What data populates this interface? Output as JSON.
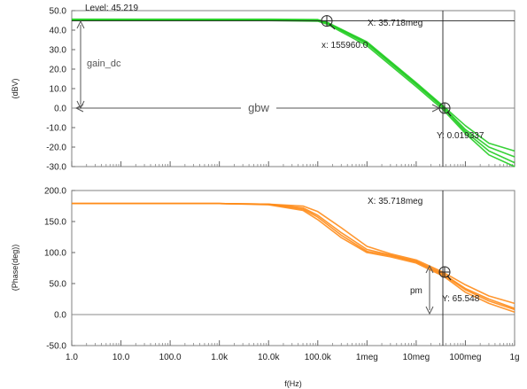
{
  "chart_data": [
    {
      "type": "line",
      "ylabel": "(dBV)",
      "xscale": "log",
      "xlim": [
        1,
        1000000000
      ],
      "ylim": [
        -30,
        50
      ],
      "grid": false,
      "yticks": [
        "50.0",
        "40.0",
        "30.0",
        "20.0",
        "10.0",
        "0.0",
        "-10.0",
        "-20.0",
        "-30.0"
      ],
      "ytick_values": [
        50,
        40,
        30,
        20,
        10,
        0,
        -10,
        -20,
        -30
      ],
      "color": "#22cc22",
      "series": [
        {
          "x": [
            1,
            10000,
            100000,
            155960,
            1000000,
            10000000,
            35718000,
            100000000,
            300000000,
            1000000000
          ],
          "y": [
            45.2,
            45.2,
            45.0,
            43.5,
            33.0,
            12.0,
            0.0,
            -12.0,
            -22.0,
            -28.0
          ]
        },
        {
          "x": [
            1,
            10000,
            100000,
            155960,
            1000000,
            10000000,
            35718000,
            100000000,
            300000000,
            1000000000
          ],
          "y": [
            45.6,
            45.6,
            45.4,
            44.0,
            34.0,
            13.0,
            1.0,
            -9.0,
            -18.0,
            -22.0
          ]
        },
        {
          "x": [
            1,
            10000,
            100000,
            155960,
            1000000,
            10000000,
            35718000,
            100000000,
            300000000,
            1000000000
          ],
          "y": [
            44.9,
            44.9,
            44.6,
            43.0,
            32.0,
            11.0,
            -1.0,
            -13.0,
            -24.0,
            -30.0
          ]
        },
        {
          "x": [
            1,
            10000,
            100000,
            155960,
            1000000,
            10000000,
            35718000,
            100000000,
            300000000,
            1000000000
          ],
          "y": [
            45.3,
            45.3,
            45.1,
            43.8,
            33.5,
            12.5,
            0.5,
            -11.0,
            -20.0,
            -25.0
          ]
        }
      ],
      "annotations": {
        "level": "Level: 45.219",
        "cursor_x": "X: 35.718meg",
        "marker1_x": "x: 155960.0",
        "marker2_y": "Y: 0.019337",
        "gain_dc": "gain_dc",
        "gbw": "gbw"
      }
    },
    {
      "type": "line",
      "ylabel": "(Phase(deg))",
      "xlabel": "f(Hz)",
      "xscale": "log",
      "xlim": [
        1,
        1000000000
      ],
      "ylim": [
        -50,
        200
      ],
      "grid": false,
      "yticks": [
        "200.0",
        "150.0",
        "100.0",
        "50.0",
        "0.0",
        "-50.0"
      ],
      "ytick_values": [
        200,
        150,
        100,
        50,
        0,
        -50
      ],
      "xticks": [
        "1.0",
        "10.0",
        "100.0",
        "1.0k",
        "10.0k",
        "100.0k",
        "1meg",
        "10meg",
        "100meg",
        "1g"
      ],
      "xtick_values": [
        1,
        10,
        100,
        1000,
        10000,
        100000,
        1000000,
        10000000,
        100000000,
        1000000000
      ],
      "color": "#ff8c1a",
      "series": [
        {
          "x": [
            1,
            1000,
            10000,
            50000,
            100000,
            300000,
            1000000,
            3000000,
            10000000,
            35718000,
            100000000,
            300000000,
            1000000000
          ],
          "y": [
            179,
            179,
            178,
            172,
            160,
            132,
            105,
            96,
            86,
            65.5,
            42,
            25,
            10
          ]
        },
        {
          "x": [
            1,
            1000,
            10000,
            50000,
            100000,
            300000,
            1000000,
            3000000,
            10000000,
            35718000,
            100000000,
            300000000,
            1000000000
          ],
          "y": [
            179,
            179,
            177,
            168,
            153,
            124,
            100,
            93,
            83,
            62,
            36,
            18,
            4
          ]
        },
        {
          "x": [
            1,
            1000,
            10000,
            50000,
            100000,
            300000,
            1000000,
            3000000,
            10000000,
            35718000,
            100000000,
            300000000,
            1000000000
          ],
          "y": [
            179,
            179,
            178,
            175,
            166,
            140,
            110,
            98,
            88,
            68,
            48,
            30,
            18
          ]
        },
        {
          "x": [
            1,
            1000,
            10000,
            50000,
            100000,
            300000,
            1000000,
            3000000,
            10000000,
            35718000,
            100000000,
            300000000,
            1000000000
          ],
          "y": [
            179,
            179,
            178,
            170,
            157,
            128,
            102,
            95,
            85,
            64,
            40,
            22,
            8
          ]
        }
      ],
      "annotations": {
        "cursor_x": "X: 35.718meg",
        "marker_y": "Y: 65.548",
        "pm": "pm"
      }
    }
  ]
}
